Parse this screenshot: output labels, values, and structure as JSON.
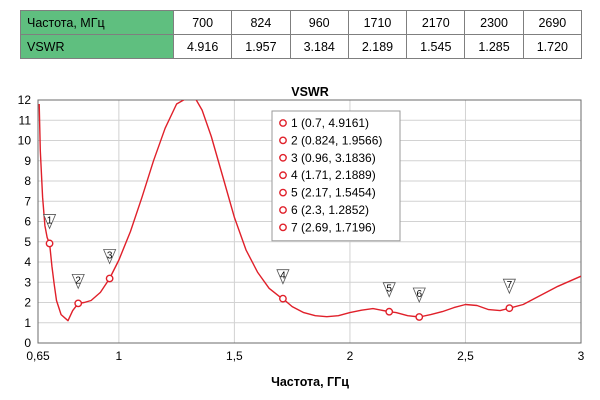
{
  "table": {
    "rows": [
      {
        "header": "Частота, МГц",
        "values": [
          "700",
          "824",
          "960",
          "1710",
          "2170",
          "2300",
          "2690"
        ]
      },
      {
        "header": "VSWR",
        "values": [
          "4.916",
          "1.957",
          "3.184",
          "2.189",
          "1.545",
          "1.285",
          "1.720"
        ]
      }
    ]
  },
  "chart_data": {
    "type": "line",
    "title": "VSWR",
    "xlabel": "Частота, ГГц",
    "ylabel": "",
    "xlim": [
      0.65,
      3
    ],
    "ylim": [
      0,
      12
    ],
    "x_ticks": [
      0.65,
      1,
      1.5,
      2,
      2.5,
      3
    ],
    "x_tick_labels": [
      "0,65",
      "1",
      "1,5",
      "2",
      "2,5",
      "3"
    ],
    "y_ticks": [
      0,
      1,
      2,
      3,
      4,
      5,
      6,
      7,
      8,
      9,
      10,
      11,
      12
    ],
    "y_tick_labels": [
      "0",
      "1",
      "2",
      "3",
      "4",
      "5",
      "6",
      "7",
      "8",
      "9",
      "10",
      "11",
      "12"
    ],
    "grid": true,
    "line_color": "#e0202a",
    "series": [
      {
        "x": [
          0.655,
          0.66,
          0.67,
          0.68,
          0.69,
          0.7,
          0.71,
          0.72,
          0.73,
          0.75,
          0.78,
          0.8,
          0.824,
          0.85,
          0.88,
          0.92,
          0.96,
          1.0,
          1.05,
          1.1,
          1.15,
          1.2,
          1.25,
          1.28,
          1.3,
          1.33,
          1.36,
          1.4,
          1.45,
          1.5,
          1.55,
          1.6,
          1.65,
          1.7,
          1.71,
          1.75,
          1.8,
          1.85,
          1.9,
          1.95,
          2.0,
          2.05,
          2.1,
          2.17,
          2.2,
          2.25,
          2.3,
          2.35,
          2.4,
          2.45,
          2.5,
          2.55,
          2.6,
          2.65,
          2.69,
          2.75,
          2.8,
          2.9,
          3.0
        ],
        "y": [
          11.8,
          9.5,
          7.2,
          5.8,
          5.2,
          4.916,
          3.8,
          2.9,
          2.1,
          1.4,
          1.1,
          1.6,
          1.957,
          2.0,
          2.1,
          2.5,
          3.184,
          4.1,
          5.5,
          7.2,
          9.0,
          10.6,
          11.8,
          12.0,
          12.2,
          12.1,
          11.5,
          10.2,
          8.2,
          6.2,
          4.6,
          3.5,
          2.7,
          2.25,
          2.189,
          1.8,
          1.5,
          1.35,
          1.3,
          1.35,
          1.5,
          1.62,
          1.7,
          1.545,
          1.5,
          1.35,
          1.285,
          1.4,
          1.55,
          1.75,
          1.9,
          1.85,
          1.65,
          1.6,
          1.72,
          1.9,
          2.2,
          2.8,
          3.3
        ]
      }
    ],
    "markers": [
      {
        "id": "1",
        "x": 0.7,
        "y": 4.9161,
        "label": "1 (0.7, 4.9161)"
      },
      {
        "id": "2",
        "x": 0.824,
        "y": 1.9566,
        "label": "2 (0.824, 1.9566)"
      },
      {
        "id": "3",
        "x": 0.96,
        "y": 3.1836,
        "label": "3 (0.96, 3.1836)"
      },
      {
        "id": "4",
        "x": 1.71,
        "y": 2.1889,
        "label": "4 (1.71, 2.1889)"
      },
      {
        "id": "5",
        "x": 2.17,
        "y": 1.5454,
        "label": "5 (2.17, 1.5454)"
      },
      {
        "id": "6",
        "x": 2.3,
        "y": 1.2852,
        "label": "6 (2.3, 1.2852)"
      },
      {
        "id": "7",
        "x": 2.69,
        "y": 1.7196,
        "label": "7 (2.69, 1.7196)"
      }
    ],
    "legend_position": "top-right"
  }
}
